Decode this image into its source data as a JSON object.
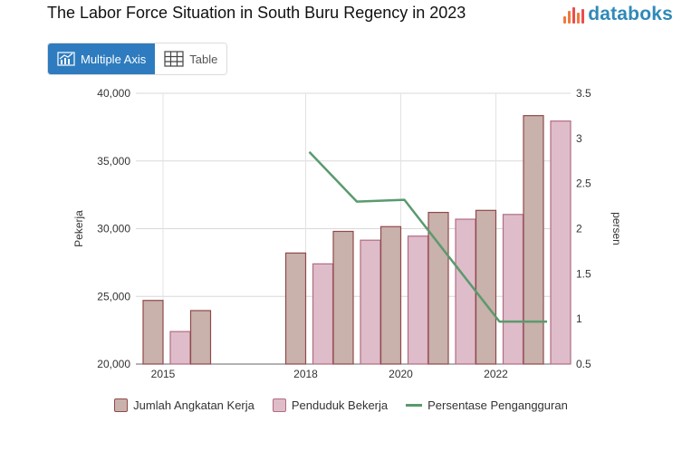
{
  "header": {
    "title": "The Labor Force Situation in South Buru Regency in 2023",
    "logo_text": "databoks"
  },
  "tabs": [
    {
      "label": "Multiple Axis",
      "icon": "chart-icon",
      "active": true
    },
    {
      "label": "Table",
      "icon": "table-icon",
      "active": false
    }
  ],
  "colors": {
    "angkatan_fill": "#c9b1ac",
    "angkatan_stroke": "#8f4a4a",
    "penduduk_fill": "#dfbcc9",
    "penduduk_stroke": "#b06d82",
    "line": "#5a9a6e",
    "accent": "#2e7cbf"
  },
  "chart_data": {
    "type": "bar",
    "x": [
      2015,
      2016,
      2017,
      2018,
      2019,
      2020,
      2021,
      2022,
      2023
    ],
    "x_tick_labels": [
      "2015",
      "2018",
      "2020",
      "2022"
    ],
    "series": [
      {
        "name": "Jumlah Angkatan Kerja",
        "type": "bar",
        "axis": "left",
        "values": [
          24700,
          23950,
          null,
          28200,
          29800,
          30150,
          31200,
          31350,
          38350
        ]
      },
      {
        "name": "Penduduk Bekerja",
        "type": "bar",
        "axis": "left",
        "values": [
          22400,
          null,
          null,
          27400,
          29150,
          29450,
          30700,
          31050,
          37950
        ]
      },
      {
        "name": "Persentase Pengangguran",
        "type": "line",
        "axis": "right",
        "values": [
          null,
          null,
          null,
          2.85,
          2.3,
          2.32,
          null,
          0.97,
          0.97
        ]
      }
    ],
    "ylabel": "Pekerja",
    "y2label": "persen",
    "ylim": [
      20000,
      40000
    ],
    "y_ticks": [
      "20,000",
      "25,000",
      "30,000",
      "35,000",
      "40,000"
    ],
    "y2lim": [
      0.5,
      3.5
    ],
    "y2_ticks": [
      "0.5",
      "1",
      "1.5",
      "2",
      "2.5",
      "3",
      "3.5"
    ],
    "grid": true,
    "legend_position": "bottom"
  }
}
